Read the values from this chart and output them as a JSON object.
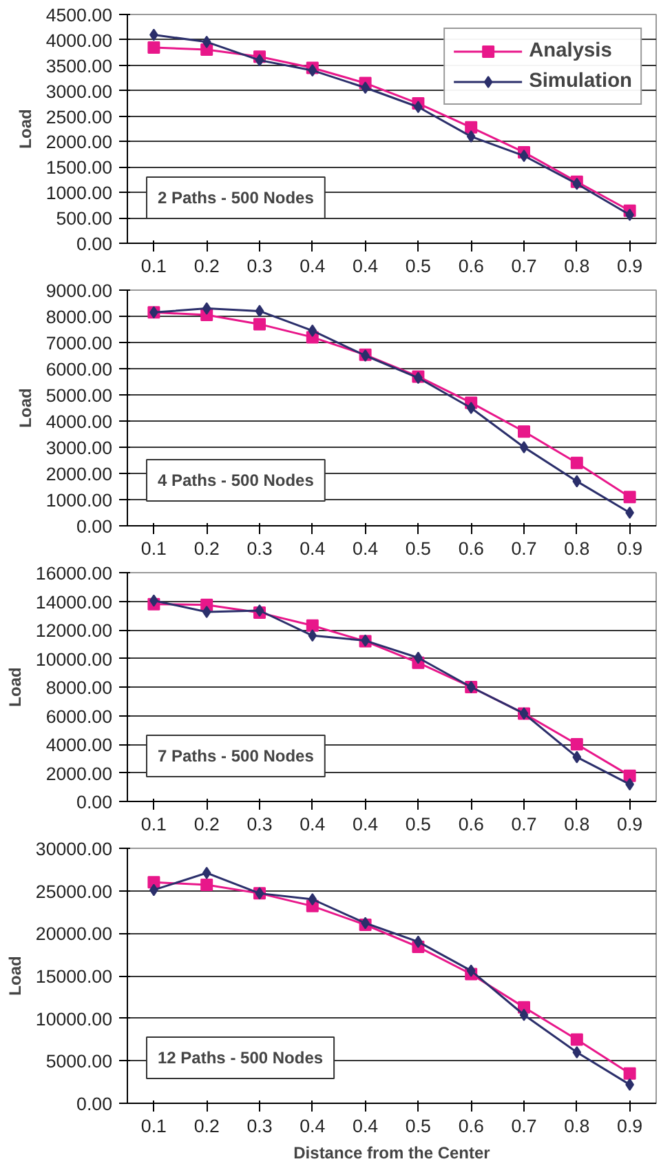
{
  "chart_data": [
    {
      "type": "line",
      "categories": [
        "0.1",
        "0.2",
        "0.3",
        "0.4",
        "0.4",
        "0.5",
        "0.6",
        "0.7",
        "0.8",
        "0.9"
      ],
      "ylabel": "Load",
      "ylim": [
        0,
        4500
      ],
      "yticks": [
        {
          "value": 0,
          "label": "0.00"
        },
        {
          "value": 500,
          "label": "500.00"
        },
        {
          "value": 1000,
          "label": "1000.00"
        },
        {
          "value": 1500,
          "label": "1500.00"
        },
        {
          "value": 2000,
          "label": "2000.00"
        },
        {
          "value": 2500,
          "label": "2500.00"
        },
        {
          "value": 3000,
          "label": "3000.00"
        },
        {
          "value": 3500,
          "label": "3500.00"
        },
        {
          "value": 4000,
          "label": "4000.00"
        },
        {
          "value": 4500,
          "label": "4500.00"
        }
      ],
      "grid": "y",
      "legend": "top right",
      "annotations": [
        "2 Paths - 500 Nodes"
      ],
      "series": [
        {
          "name": "Analysis",
          "color": "#e8178a",
          "marker": "square",
          "values": [
            3850,
            3810,
            3670,
            3450,
            3150,
            2750,
            2280,
            1790,
            1210,
            640
          ]
        },
        {
          "name": "Simulation",
          "color": "#2b2f6b",
          "marker": "diamond",
          "values": [
            4100,
            3960,
            3600,
            3400,
            3060,
            2680,
            2100,
            1720,
            1170,
            560
          ]
        }
      ]
    },
    {
      "type": "line",
      "categories": [
        "0.1",
        "0.2",
        "0.3",
        "0.4",
        "0.4",
        "0.5",
        "0.6",
        "0.7",
        "0.8",
        "0.9"
      ],
      "ylabel": "Load",
      "ylim": [
        0,
        9000
      ],
      "yticks": [
        {
          "value": 0,
          "label": "0.00"
        },
        {
          "value": 1000,
          "label": "1000.00"
        },
        {
          "value": 2000,
          "label": "2000.00"
        },
        {
          "value": 3000,
          "label": "3000.00"
        },
        {
          "value": 4000,
          "label": "4000.00"
        },
        {
          "value": 5000,
          "label": "5000.00"
        },
        {
          "value": 6000,
          "label": "6000.00"
        },
        {
          "value": 7000,
          "label": "7000.00"
        },
        {
          "value": 8000,
          "label": "8000.00"
        },
        {
          "value": 9000,
          "label": "9000.00"
        }
      ],
      "grid": "y",
      "annotations": [
        "4 Paths - 500 Nodes"
      ],
      "series": [
        {
          "color": "#e8178a",
          "marker": "square",
          "values": [
            8150,
            8050,
            7700,
            7200,
            6530,
            5700,
            4700,
            3600,
            2400,
            1100
          ]
        },
        {
          "color": "#2b2f6b",
          "marker": "diamond",
          "values": [
            8150,
            8300,
            8200,
            7450,
            6500,
            5650,
            4500,
            3000,
            1700,
            500
          ]
        }
      ]
    },
    {
      "type": "line",
      "categories": [
        "0.1",
        "0.2",
        "0.3",
        "0.4",
        "0.4",
        "0.5",
        "0.6",
        "0.7",
        "0.8",
        "0.9"
      ],
      "ylabel": "Load",
      "ylim": [
        0,
        16000
      ],
      "yticks": [
        {
          "value": 0,
          "label": "0.00"
        },
        {
          "value": 2000,
          "label": "2000.00"
        },
        {
          "value": 4000,
          "label": "4000.00"
        },
        {
          "value": 6000,
          "label": "6000.00"
        },
        {
          "value": 8000,
          "label": "8000.00"
        },
        {
          "value": 10000,
          "label": "10000.00"
        },
        {
          "value": 12000,
          "label": "12000.00"
        },
        {
          "value": 14000,
          "label": "14000.00"
        },
        {
          "value": 16000,
          "label": "16000.00"
        }
      ],
      "grid": "y",
      "annotations": [
        "7 Paths - 500 Nodes"
      ],
      "series": [
        {
          "color": "#e8178a",
          "marker": "square",
          "values": [
            13800,
            13750,
            13200,
            12300,
            11200,
            9700,
            8000,
            6150,
            4000,
            1800
          ]
        },
        {
          "color": "#2b2f6b",
          "marker": "diamond",
          "values": [
            14050,
            13250,
            13350,
            11600,
            11250,
            10050,
            8000,
            6150,
            3100,
            1200
          ]
        }
      ]
    },
    {
      "type": "line",
      "categories": [
        "0.1",
        "0.2",
        "0.3",
        "0.4",
        "0.4",
        "0.5",
        "0.6",
        "0.7",
        "0.8",
        "0.9"
      ],
      "xlabel": "Distance from the Center",
      "ylabel": "Load",
      "ylim": [
        0,
        30000
      ],
      "yticks": [
        {
          "value": 0,
          "label": "0.00"
        },
        {
          "value": 5000,
          "label": "5000.00"
        },
        {
          "value": 10000,
          "label": "10000.00"
        },
        {
          "value": 15000,
          "label": "15000.00"
        },
        {
          "value": 20000,
          "label": "20000.00"
        },
        {
          "value": 25000,
          "label": "25000.00"
        },
        {
          "value": 30000,
          "label": "30000.00"
        }
      ],
      "grid": "y",
      "annotations": [
        "12 Paths - 500 Nodes"
      ],
      "series": [
        {
          "color": "#e8178a",
          "marker": "square",
          "values": [
            26000,
            25700,
            24700,
            23200,
            21000,
            18400,
            15200,
            11300,
            7500,
            3500
          ]
        },
        {
          "color": "#2b2f6b",
          "marker": "diamond",
          "values": [
            25100,
            27100,
            24700,
            24000,
            21200,
            19000,
            15600,
            10400,
            6000,
            2200
          ]
        }
      ]
    }
  ]
}
